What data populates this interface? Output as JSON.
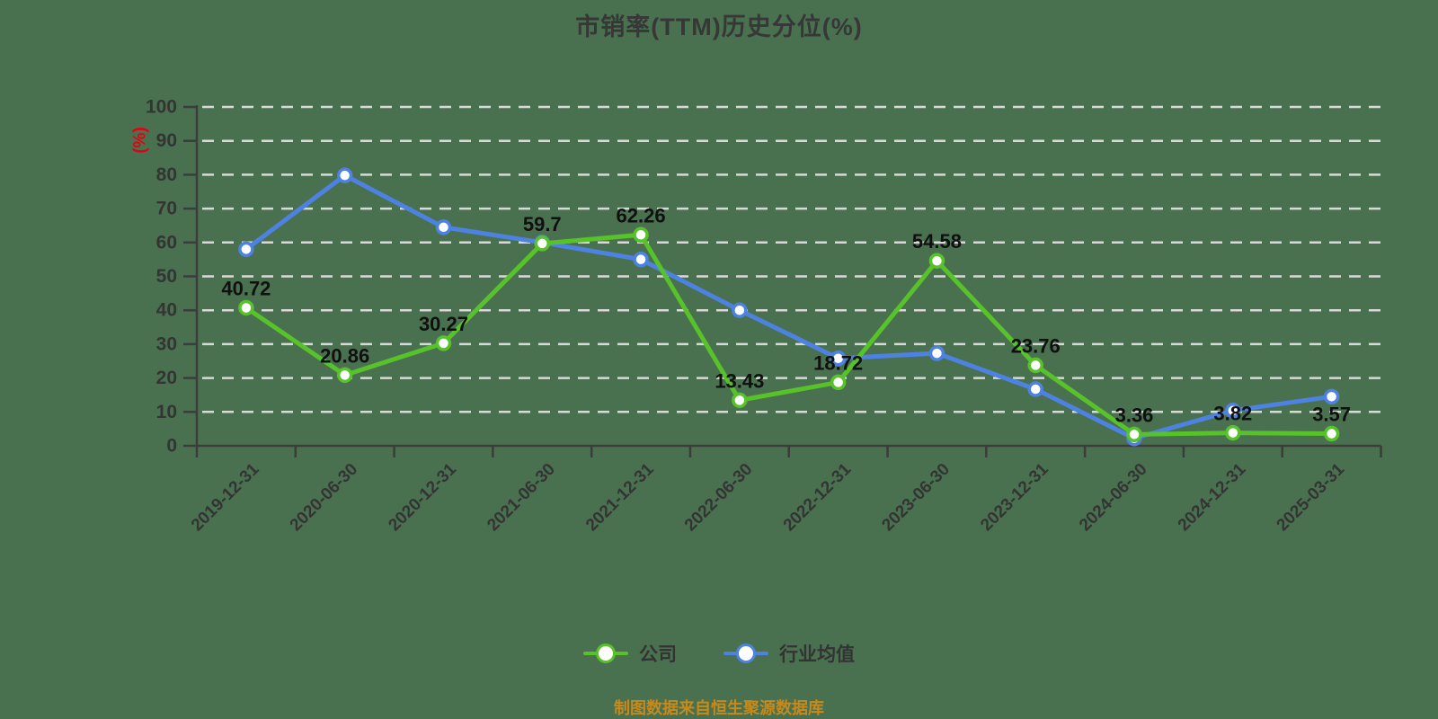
{
  "title": "市销率(TTM)历史分位(%)",
  "y_axis_name": "(%)",
  "footer": "制图数据来自恒生聚源数据库",
  "legend": {
    "company_label": "公司",
    "industry_label": "行业均值"
  },
  "colors": {
    "background": "#49714F",
    "grid": "#d9d9d9",
    "axis": "#3c3c3c",
    "tick_text": "#343434",
    "title_text": "#373737",
    "data_label_text": "#101010",
    "axis_name_red": "#e60012",
    "footer_orange": "#c9891a",
    "company_green": "#57c229",
    "industry_blue": "#4e82e2"
  },
  "chart_data": {
    "type": "line",
    "title": "市销率(TTM)历史分位(%)",
    "categories": [
      "2019-12-31",
      "2020-06-30",
      "2020-12-31",
      "2021-06-30",
      "2021-12-31",
      "2022-06-30",
      "2022-12-31",
      "2023-06-30",
      "2023-12-31",
      "2024-06-30",
      "2024-12-31",
      "2025-03-31"
    ],
    "series": [
      {
        "name": "公司",
        "color": "#57c229",
        "values": [
          40.72,
          20.86,
          30.27,
          59.7,
          62.26,
          13.43,
          18.72,
          54.58,
          23.76,
          3.36,
          3.82,
          3.57
        ],
        "labels": [
          "40.72",
          "20.86",
          "30.27",
          "59.7",
          "62.26",
          "13.43",
          "18.72",
          "54.58",
          "23.76",
          "3.36",
          "3.82",
          "3.57"
        ],
        "show_labels": true
      },
      {
        "name": "行业均值",
        "color": "#4e82e2",
        "values": [
          58,
          79.8,
          64.5,
          60,
          55,
          40,
          25.8,
          27.3,
          16.7,
          2.2,
          10.4,
          14.5
        ],
        "labels": [],
        "show_labels": false
      }
    ],
    "ylabel": "(%)",
    "ylim": [
      0,
      100
    ],
    "y_ticks": [
      0,
      10,
      20,
      30,
      40,
      50,
      60,
      70,
      80,
      90,
      100
    ],
    "grid": "dashed-horizontal-white",
    "legend_position": "bottom",
    "x_label_rotation_deg": 45
  }
}
